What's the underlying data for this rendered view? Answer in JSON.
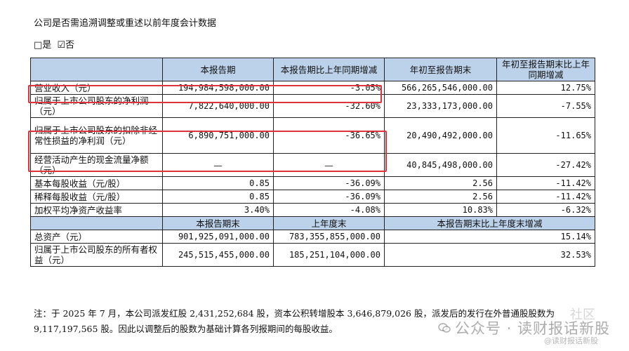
{
  "question": "公司是否需追溯调整或重述以前年度会计数据",
  "options": {
    "yes": "□是",
    "no": "☑否"
  },
  "table": {
    "header": [
      "",
      "本报告期",
      "本报告期比上年同期增减",
      "年初至报告期末",
      "年初至报告期末比上年同期增减"
    ],
    "rows": [
      [
        "营业收入（元）",
        "194,984,598,000.00",
        "-3.05%",
        "566,265,546,000.00",
        "12.75%"
      ],
      [
        "归属于上市公司股东的净利润（元）",
        "7,822,640,000.00",
        "-32.60%",
        "23,333,173,000.00",
        "-7.55%"
      ],
      [
        "归属于上市公司股东的扣除非经常性损益的净利润（元）",
        "6,890,751,000.00",
        "-36.65%",
        "20,490,492,000.00",
        "-11.65%"
      ],
      [
        "经营活动产生的现金流量净额（元）",
        "—",
        "—",
        "40,845,498,000.00",
        "-27.42%"
      ],
      [
        "基本每股收益（元/股）",
        "0.85",
        "-36.09%",
        "2.56",
        "-11.42%"
      ],
      [
        "稀释每股收益（元/股）",
        "0.85",
        "-36.09%",
        "2.56",
        "-11.42%"
      ],
      [
        "加权平均净资产收益率",
        "3.40%",
        "-4.08%",
        "10.83%",
        "-6.32%"
      ]
    ],
    "header2": [
      "",
      "本报告期末",
      "上年度末",
      "本报告期末比上年度末增减"
    ],
    "rows2": [
      [
        "总资产（元）",
        "901,925,091,000.00",
        "783,355,855,000.00",
        "15.14%"
      ],
      [
        "归属于上市公司股东的所有者权益（元）",
        "245,515,455,000.00",
        "185,251,104,000.00",
        "32.53%"
      ]
    ]
  },
  "note": "注：于 2025 年 7 月，本公司派发红股 2,431,252,684 股，资本公积转增股本 3,646,879,026 股，派发后的发行在外普通股股数为 9,117,197,565 股。因此以调整后的股数为基础计算各列报期间的每股收益。",
  "watermark": {
    "main": "公众号 · 读财报话新股",
    "top": "社区",
    "small": "@读财报话新股",
    "icon": "wechat-icon"
  },
  "colors": {
    "header_bg": "#bcd2ea",
    "highlight": "#e0323c"
  }
}
